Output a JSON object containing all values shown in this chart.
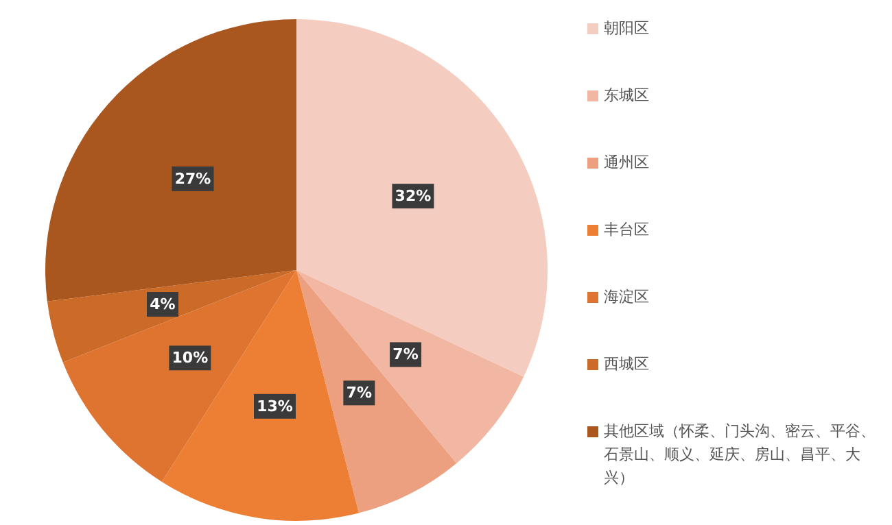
{
  "chart_data": {
    "type": "pie",
    "categories": [
      "朝阳区",
      "东城区",
      "通州区",
      "丰台区",
      "海淀区",
      "西城区",
      "其他区域（怀柔、门头沟、密云、平谷、石景山、顺义、延庆、房山、昌平、大兴）"
    ],
    "values": [
      32,
      7,
      7,
      13,
      10,
      4,
      27
    ],
    "colors": [
      "#f5cdc0",
      "#f2b7a3",
      "#eda07f",
      "#ec7f34",
      "#de742f",
      "#cc6a28",
      "#a9561f"
    ],
    "value_labels": [
      "32%",
      "7%",
      "7%",
      "13%",
      "10%",
      "4%",
      "27%"
    ],
    "legend": "right"
  }
}
